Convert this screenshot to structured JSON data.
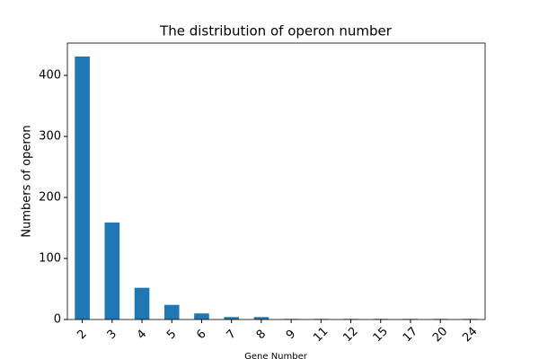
{
  "chart_data": {
    "type": "bar",
    "title": "The distribution of operon number",
    "x_label": "Gene Number",
    "y_label": "Numbers of operon",
    "categories": [
      "2",
      "3",
      "4",
      "5",
      "6",
      "7",
      "8",
      "9",
      "11",
      "12",
      "15",
      "17",
      "20",
      "24"
    ],
    "values": [
      431,
      159,
      52,
      24,
      10,
      4,
      4,
      1,
      1,
      1,
      1,
      1,
      1,
      1
    ],
    "color": "#1f77b4",
    "ylim": [
      0,
      453
    ],
    "yticks": [
      0,
      100,
      200,
      300,
      400
    ]
  }
}
